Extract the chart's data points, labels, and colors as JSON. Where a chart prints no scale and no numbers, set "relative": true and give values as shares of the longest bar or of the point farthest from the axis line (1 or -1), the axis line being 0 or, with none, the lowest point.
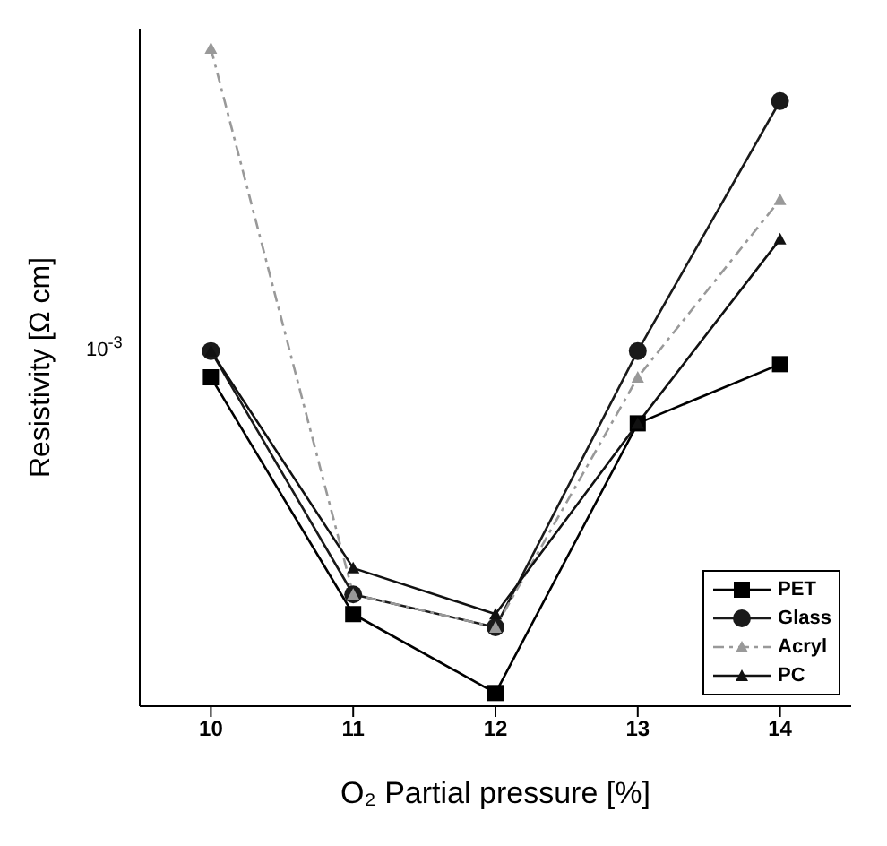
{
  "chart_data": {
    "type": "line",
    "xlabel": "O₂ Partial pressure [%]",
    "ylabel": "Resistivity [Ω cm]",
    "relative": true,
    "x": [
      10,
      11,
      12,
      13,
      14
    ],
    "xlim": [
      9.5,
      14.5
    ],
    "xticks": [
      10,
      11,
      12,
      13,
      14
    ],
    "legend": "bottom right",
    "annotations": [
      "10$^{-3}$"
    ],
    "series": [
      {
        "name": "PET",
        "color": "#000000",
        "marker": "square",
        "line_style": "solid",
        "values": [
          0.5,
          0.14,
          0.02,
          0.43,
          0.52
        ]
      },
      {
        "name": "Glass",
        "color": "#1a1a1a",
        "marker": "circle",
        "line_style": "solid",
        "values": [
          0.54,
          0.17,
          0.12,
          0.54,
          0.92
        ]
      },
      {
        "name": "Acryl",
        "color": "#999999",
        "marker": "triangle",
        "line_style": "dashed",
        "values": [
          1,
          0.17,
          0.12,
          0.5,
          0.77
        ]
      },
      {
        "name": "PC",
        "color": "#111111",
        "marker": "triangle",
        "line_style": "solid",
        "values": [
          0.54,
          0.21,
          0.14,
          0.43,
          0.71
        ]
      }
    ]
  }
}
